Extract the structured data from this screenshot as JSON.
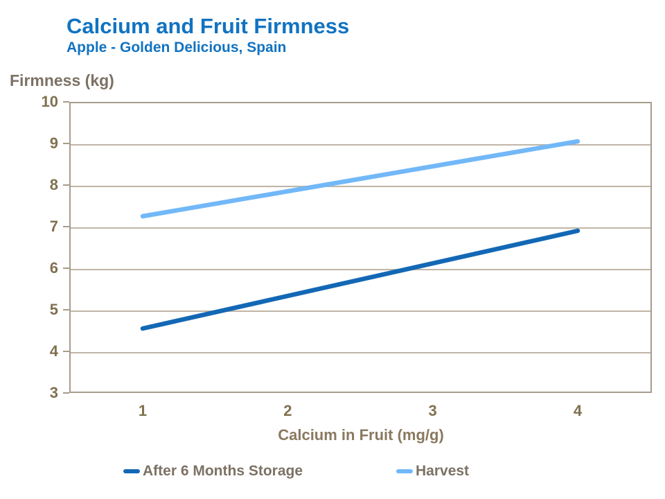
{
  "header": {
    "title": "Calcium and Fruit Firmness",
    "subtitle": "Apple - Golden Delicious, Spain"
  },
  "chart_data": {
    "type": "line",
    "title": "Calcium and Fruit Firmness",
    "subtitle": "Apple - Golden Delicious, Spain",
    "xlabel": "Calcium in Fruit (mg/g)",
    "ylabel": "Firmness (kg)",
    "xlim": [
      1,
      4
    ],
    "ylim": [
      3,
      10
    ],
    "xticks": [
      1,
      2,
      3,
      4
    ],
    "yticks": [
      3,
      4,
      5,
      6,
      7,
      8,
      9,
      10
    ],
    "grid": "horizontal",
    "legend_position": "bottom",
    "x": [
      1,
      4
    ],
    "series": [
      {
        "name": "After 6 Months Storage",
        "values": [
          4.55,
          6.9
        ],
        "color": "#1368B5"
      },
      {
        "name": "Harvest",
        "values": [
          7.25,
          9.05
        ],
        "color": "#72B8F8"
      }
    ]
  },
  "colors": {
    "title_blue": "#1173C1",
    "axis_text_brown": "#80704F",
    "label_gray_brown": "#7C7164",
    "axis_border": "#A79C8B",
    "gridline": "#C0B5A6",
    "storage_line": "#1368B5",
    "harvest_line": "#72B8F8"
  }
}
